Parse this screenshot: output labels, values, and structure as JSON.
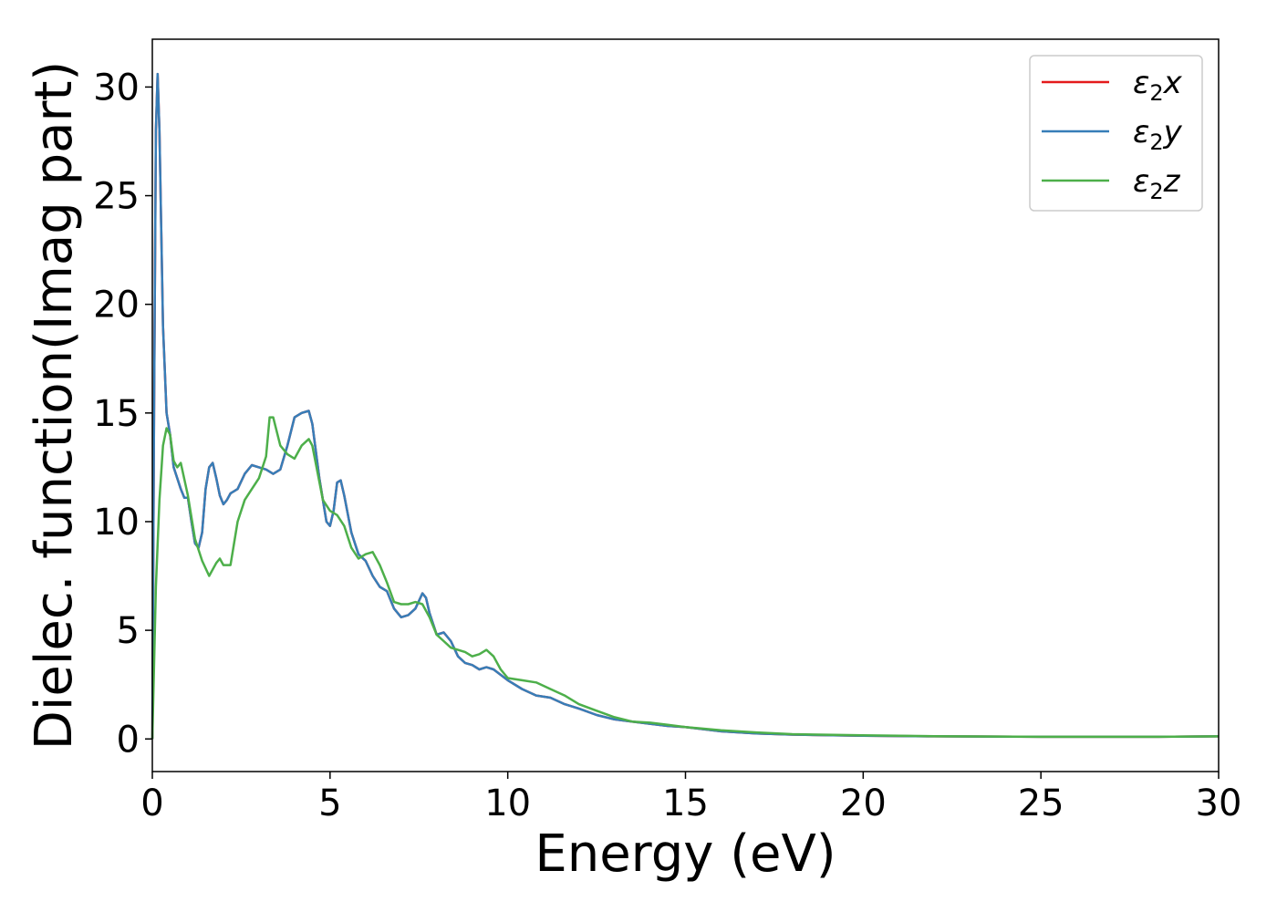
{
  "chart_data": {
    "type": "line",
    "title": "",
    "xlabel": "Energy (eV)",
    "ylabel": "Dielec. function(Imag part)",
    "xlim": [
      0,
      30
    ],
    "ylim": [
      -1.5,
      32.2
    ],
    "xticks": [
      0,
      5,
      10,
      15,
      20,
      25,
      30
    ],
    "xtick_labels": [
      "0",
      "5",
      "10",
      "15",
      "20",
      "25",
      "30"
    ],
    "yticks": [
      0,
      5,
      10,
      15,
      20,
      25,
      30
    ],
    "ytick_labels": [
      "0",
      "5",
      "10",
      "15",
      "20",
      "25",
      "30"
    ],
    "grid": false,
    "legend_position": "top-right",
    "series": [
      {
        "name": "ε₂x",
        "legend_base": "ε",
        "legend_sub": "2",
        "legend_suffix": "x",
        "color": "#e41a1c",
        "points": [
          [
            0,
            0
          ],
          [
            0.05,
            15
          ],
          [
            0.1,
            28
          ],
          [
            0.15,
            30.6
          ],
          [
            0.2,
            28
          ],
          [
            0.3,
            19
          ],
          [
            0.4,
            15
          ],
          [
            0.5,
            14
          ],
          [
            0.6,
            12.5
          ],
          [
            0.8,
            11.5
          ],
          [
            0.9,
            11.1
          ],
          [
            1.0,
            11.1
          ],
          [
            1.1,
            10
          ],
          [
            1.2,
            9
          ],
          [
            1.3,
            8.8
          ],
          [
            1.4,
            9.5
          ],
          [
            1.5,
            11.5
          ],
          [
            1.6,
            12.5
          ],
          [
            1.7,
            12.7
          ],
          [
            1.8,
            12
          ],
          [
            1.9,
            11.2
          ],
          [
            2.0,
            10.8
          ],
          [
            2.1,
            11
          ],
          [
            2.2,
            11.3
          ],
          [
            2.4,
            11.5
          ],
          [
            2.6,
            12.2
          ],
          [
            2.8,
            12.6
          ],
          [
            3.0,
            12.5
          ],
          [
            3.2,
            12.4
          ],
          [
            3.4,
            12.2
          ],
          [
            3.6,
            12.4
          ],
          [
            3.8,
            13.5
          ],
          [
            4.0,
            14.8
          ],
          [
            4.2,
            15
          ],
          [
            4.4,
            15.1
          ],
          [
            4.5,
            14.5
          ],
          [
            4.7,
            12
          ],
          [
            4.9,
            10
          ],
          [
            5.0,
            9.8
          ],
          [
            5.1,
            10.5
          ],
          [
            5.2,
            11.8
          ],
          [
            5.3,
            11.9
          ],
          [
            5.4,
            11.2
          ],
          [
            5.6,
            9.5
          ],
          [
            5.8,
            8.5
          ],
          [
            6.0,
            8.2
          ],
          [
            6.2,
            7.5
          ],
          [
            6.4,
            7.0
          ],
          [
            6.6,
            6.8
          ],
          [
            6.8,
            6.0
          ],
          [
            7.0,
            5.6
          ],
          [
            7.2,
            5.7
          ],
          [
            7.4,
            6.0
          ],
          [
            7.6,
            6.7
          ],
          [
            7.7,
            6.5
          ],
          [
            7.8,
            5.8
          ],
          [
            8.0,
            4.8
          ],
          [
            8.2,
            4.9
          ],
          [
            8.4,
            4.5
          ],
          [
            8.6,
            3.8
          ],
          [
            8.8,
            3.5
          ],
          [
            9.0,
            3.4
          ],
          [
            9.2,
            3.2
          ],
          [
            9.4,
            3.3
          ],
          [
            9.6,
            3.2
          ],
          [
            10.0,
            2.7
          ],
          [
            10.4,
            2.3
          ],
          [
            10.8,
            2.0
          ],
          [
            11.2,
            1.9
          ],
          [
            11.6,
            1.6
          ],
          [
            12.0,
            1.4
          ],
          [
            12.5,
            1.1
          ],
          [
            13.0,
            0.9
          ],
          [
            13.5,
            0.8
          ],
          [
            14.0,
            0.7
          ],
          [
            14.5,
            0.6
          ],
          [
            15.0,
            0.55
          ],
          [
            16.0,
            0.35
          ],
          [
            17.0,
            0.25
          ],
          [
            18.0,
            0.2
          ],
          [
            20.0,
            0.15
          ],
          [
            22.0,
            0.12
          ],
          [
            25.0,
            0.1
          ],
          [
            28.0,
            0.1
          ],
          [
            30.0,
            0.12
          ]
        ]
      },
      {
        "name": "ε₂y",
        "legend_base": "ε",
        "legend_sub": "2",
        "legend_suffix": "y",
        "color": "#377eb8",
        "points": [
          [
            0,
            0
          ],
          [
            0.05,
            15
          ],
          [
            0.1,
            28
          ],
          [
            0.15,
            30.6
          ],
          [
            0.2,
            28
          ],
          [
            0.3,
            19
          ],
          [
            0.4,
            15
          ],
          [
            0.5,
            14
          ],
          [
            0.6,
            12.5
          ],
          [
            0.8,
            11.5
          ],
          [
            0.9,
            11.1
          ],
          [
            1.0,
            11.1
          ],
          [
            1.1,
            10
          ],
          [
            1.2,
            9
          ],
          [
            1.3,
            8.8
          ],
          [
            1.4,
            9.5
          ],
          [
            1.5,
            11.5
          ],
          [
            1.6,
            12.5
          ],
          [
            1.7,
            12.7
          ],
          [
            1.8,
            12
          ],
          [
            1.9,
            11.2
          ],
          [
            2.0,
            10.8
          ],
          [
            2.1,
            11
          ],
          [
            2.2,
            11.3
          ],
          [
            2.4,
            11.5
          ],
          [
            2.6,
            12.2
          ],
          [
            2.8,
            12.6
          ],
          [
            3.0,
            12.5
          ],
          [
            3.2,
            12.4
          ],
          [
            3.4,
            12.2
          ],
          [
            3.6,
            12.4
          ],
          [
            3.8,
            13.5
          ],
          [
            4.0,
            14.8
          ],
          [
            4.2,
            15
          ],
          [
            4.4,
            15.1
          ],
          [
            4.5,
            14.5
          ],
          [
            4.7,
            12
          ],
          [
            4.9,
            10
          ],
          [
            5.0,
            9.8
          ],
          [
            5.1,
            10.5
          ],
          [
            5.2,
            11.8
          ],
          [
            5.3,
            11.9
          ],
          [
            5.4,
            11.2
          ],
          [
            5.6,
            9.5
          ],
          [
            5.8,
            8.5
          ],
          [
            6.0,
            8.2
          ],
          [
            6.2,
            7.5
          ],
          [
            6.4,
            7.0
          ],
          [
            6.6,
            6.8
          ],
          [
            6.8,
            6.0
          ],
          [
            7.0,
            5.6
          ],
          [
            7.2,
            5.7
          ],
          [
            7.4,
            6.0
          ],
          [
            7.6,
            6.7
          ],
          [
            7.7,
            6.5
          ],
          [
            7.8,
            5.8
          ],
          [
            8.0,
            4.8
          ],
          [
            8.2,
            4.9
          ],
          [
            8.4,
            4.5
          ],
          [
            8.6,
            3.8
          ],
          [
            8.8,
            3.5
          ],
          [
            9.0,
            3.4
          ],
          [
            9.2,
            3.2
          ],
          [
            9.4,
            3.3
          ],
          [
            9.6,
            3.2
          ],
          [
            10.0,
            2.7
          ],
          [
            10.4,
            2.3
          ],
          [
            10.8,
            2.0
          ],
          [
            11.2,
            1.9
          ],
          [
            11.6,
            1.6
          ],
          [
            12.0,
            1.4
          ],
          [
            12.5,
            1.1
          ],
          [
            13.0,
            0.9
          ],
          [
            13.5,
            0.8
          ],
          [
            14.0,
            0.7
          ],
          [
            14.5,
            0.6
          ],
          [
            15.0,
            0.55
          ],
          [
            16.0,
            0.35
          ],
          [
            17.0,
            0.25
          ],
          [
            18.0,
            0.2
          ],
          [
            20.0,
            0.15
          ],
          [
            22.0,
            0.12
          ],
          [
            25.0,
            0.1
          ],
          [
            28.0,
            0.1
          ],
          [
            30.0,
            0.12
          ]
        ]
      },
      {
        "name": "ε₂z",
        "legend_base": "ε",
        "legend_sub": "2",
        "legend_suffix": "z",
        "color": "#4daf4a",
        "points": [
          [
            0,
            0
          ],
          [
            0.1,
            7
          ],
          [
            0.2,
            11
          ],
          [
            0.3,
            13.5
          ],
          [
            0.4,
            14.3
          ],
          [
            0.5,
            14
          ],
          [
            0.6,
            12.8
          ],
          [
            0.7,
            12.5
          ],
          [
            0.8,
            12.7
          ],
          [
            1.0,
            11.2
          ],
          [
            1.2,
            9.2
          ],
          [
            1.4,
            8.2
          ],
          [
            1.6,
            7.5
          ],
          [
            1.8,
            8.1
          ],
          [
            1.9,
            8.3
          ],
          [
            2.0,
            8.0
          ],
          [
            2.2,
            8.0
          ],
          [
            2.4,
            10.0
          ],
          [
            2.6,
            11.0
          ],
          [
            2.8,
            11.5
          ],
          [
            3.0,
            12.0
          ],
          [
            3.2,
            13.0
          ],
          [
            3.3,
            14.8
          ],
          [
            3.4,
            14.8
          ],
          [
            3.6,
            13.5
          ],
          [
            3.8,
            13.1
          ],
          [
            4.0,
            12.9
          ],
          [
            4.2,
            13.5
          ],
          [
            4.4,
            13.8
          ],
          [
            4.5,
            13.5
          ],
          [
            4.8,
            11.0
          ],
          [
            5.0,
            10.5
          ],
          [
            5.2,
            10.3
          ],
          [
            5.4,
            9.8
          ],
          [
            5.6,
            8.8
          ],
          [
            5.8,
            8.3
          ],
          [
            6.0,
            8.5
          ],
          [
            6.2,
            8.6
          ],
          [
            6.4,
            8.0
          ],
          [
            6.6,
            7.2
          ],
          [
            6.8,
            6.3
          ],
          [
            7.0,
            6.2
          ],
          [
            7.2,
            6.2
          ],
          [
            7.4,
            6.3
          ],
          [
            7.6,
            6.2
          ],
          [
            7.8,
            5.6
          ],
          [
            8.0,
            4.8
          ],
          [
            8.2,
            4.5
          ],
          [
            8.4,
            4.2
          ],
          [
            8.6,
            4.1
          ],
          [
            8.8,
            4.0
          ],
          [
            9.0,
            3.8
          ],
          [
            9.2,
            3.9
          ],
          [
            9.4,
            4.1
          ],
          [
            9.6,
            3.8
          ],
          [
            9.8,
            3.2
          ],
          [
            10.0,
            2.8
          ],
          [
            10.4,
            2.7
          ],
          [
            10.8,
            2.6
          ],
          [
            11.2,
            2.3
          ],
          [
            11.6,
            2.0
          ],
          [
            12.0,
            1.6
          ],
          [
            12.5,
            1.3
          ],
          [
            13.0,
            1.0
          ],
          [
            13.5,
            0.8
          ],
          [
            14.0,
            0.75
          ],
          [
            14.5,
            0.65
          ],
          [
            15.0,
            0.55
          ],
          [
            16.0,
            0.4
          ],
          [
            17.0,
            0.3
          ],
          [
            18.0,
            0.22
          ],
          [
            20.0,
            0.17
          ],
          [
            22.0,
            0.13
          ],
          [
            25.0,
            0.1
          ],
          [
            28.0,
            0.1
          ],
          [
            30.0,
            0.12
          ]
        ]
      }
    ]
  }
}
